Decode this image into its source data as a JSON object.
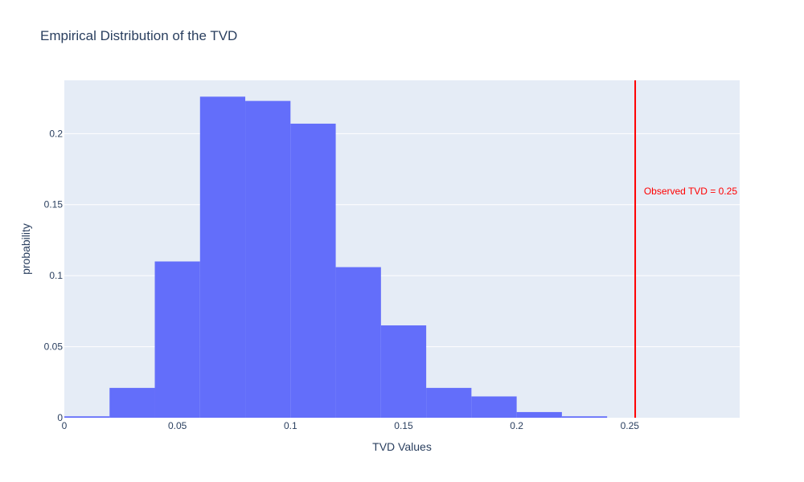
{
  "chart_data": {
    "type": "bar",
    "title": "Empirical Distribution of the TVD",
    "xlabel": "TVD Values",
    "ylabel": "probability",
    "xlim": [
      0,
      0.2986
    ],
    "ylim": [
      0,
      0.2375
    ],
    "x_ticks": [
      {
        "value": 0,
        "label": "0"
      },
      {
        "value": 0.05,
        "label": "0.05"
      },
      {
        "value": 0.1,
        "label": "0.1"
      },
      {
        "value": 0.15,
        "label": "0.15"
      },
      {
        "value": 0.2,
        "label": "0.2"
      },
      {
        "value": 0.25,
        "label": "0.25"
      }
    ],
    "y_ticks": [
      {
        "value": 0,
        "label": "0"
      },
      {
        "value": 0.05,
        "label": "0.05"
      },
      {
        "value": 0.1,
        "label": "0.1"
      },
      {
        "value": 0.15,
        "label": "0.15"
      },
      {
        "value": 0.2,
        "label": "0.2"
      }
    ],
    "bins": [
      {
        "x0": 0.0,
        "x1": 0.02,
        "value": 0.001
      },
      {
        "x0": 0.02,
        "x1": 0.04,
        "value": 0.021
      },
      {
        "x0": 0.04,
        "x1": 0.06,
        "value": 0.11
      },
      {
        "x0": 0.06,
        "x1": 0.08,
        "value": 0.226
      },
      {
        "x0": 0.08,
        "x1": 0.1,
        "value": 0.223
      },
      {
        "x0": 0.1,
        "x1": 0.12,
        "value": 0.207
      },
      {
        "x0": 0.12,
        "x1": 0.14,
        "value": 0.106
      },
      {
        "x0": 0.14,
        "x1": 0.16,
        "value": 0.065
      },
      {
        "x0": 0.16,
        "x1": 0.18,
        "value": 0.021
      },
      {
        "x0": 0.18,
        "x1": 0.2,
        "value": 0.015
      },
      {
        "x0": 0.2,
        "x1": 0.22,
        "value": 0.004
      },
      {
        "x0": 0.22,
        "x1": 0.24,
        "value": 0.001
      }
    ],
    "reference_line": {
      "x": 0.2524,
      "label": "Observed TVD = 0.25",
      "color": "#ff0000"
    },
    "bar_color": "#636efa",
    "plot_bgcolor": "#e5ecf6",
    "grid": true
  }
}
